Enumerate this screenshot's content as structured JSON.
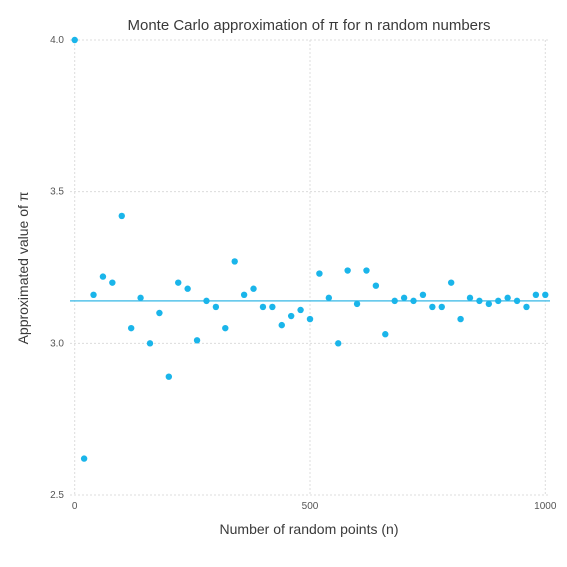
{
  "chart_data": {
    "type": "scatter",
    "title": "Monte Carlo approximation of π for n random numbers",
    "xlabel": "Number of random points (n)",
    "ylabel": "Approximated value of π",
    "xlim": [
      -10,
      1010
    ],
    "ylim": [
      2.5,
      4.0
    ],
    "xticks": [
      0,
      500,
      1000
    ],
    "yticks": [
      2.5,
      3.0,
      3.5,
      4.0
    ],
    "grid": true,
    "legend": "none",
    "colors": {
      "points": "#1ab5ea",
      "reference_line": "#56c3ea"
    },
    "reference_line": {
      "y": 3.14
    },
    "series": [
      {
        "x": [
          0,
          20,
          40,
          60,
          80,
          100,
          120,
          140,
          160,
          180,
          200,
          220,
          240,
          260,
          280,
          300,
          320,
          340,
          360,
          380,
          400,
          420,
          440,
          460,
          480,
          500,
          520,
          540,
          560,
          580,
          600,
          620,
          640,
          660,
          680,
          700,
          720,
          740,
          760,
          780,
          800,
          820,
          840,
          860,
          880,
          900,
          920,
          940,
          960,
          980,
          1000
        ],
        "y": [
          4.0,
          2.62,
          3.16,
          3.22,
          3.2,
          3.42,
          3.05,
          3.15,
          3.0,
          3.1,
          2.89,
          3.2,
          3.18,
          3.01,
          3.14,
          3.12,
          3.05,
          3.27,
          3.16,
          3.18,
          3.12,
          3.12,
          3.06,
          3.09,
          3.11,
          3.08,
          3.23,
          3.15,
          3.0,
          3.24,
          3.13,
          3.24,
          3.19,
          3.03,
          3.14,
          3.15,
          3.14,
          3.16,
          3.12,
          3.12,
          3.2,
          3.08,
          3.15,
          3.14,
          3.13,
          3.14,
          3.15,
          3.14,
          3.12,
          3.16,
          3.16
        ]
      }
    ]
  }
}
